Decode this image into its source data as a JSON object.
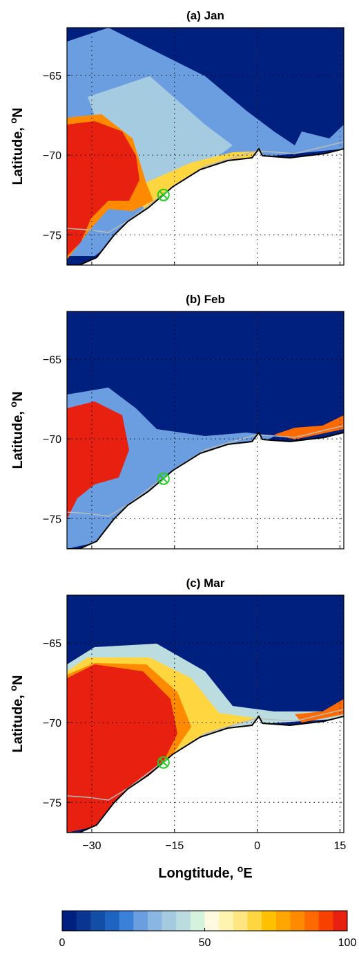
{
  "axes": {
    "xlim": [
      -34.5,
      15.7
    ],
    "ylim": [
      -76.9,
      -62
    ],
    "xticks": [
      {
        "value": -30,
        "label": "−30"
      },
      {
        "value": -15,
        "label": "−15"
      },
      0,
      15
    ],
    "yticks": [
      {
        "value": -65,
        "label": "−65"
      },
      {
        "value": -70,
        "label": "−70"
      },
      {
        "value": -75,
        "label": "−75"
      }
    ],
    "xlabel": {
      "text": "Longtitude, ",
      "sup": "o",
      "unit": "E"
    },
    "ylabel": {
      "text": "Latitude, ",
      "sup": "o",
      "unit": "N"
    },
    "grid": true,
    "grid_style": "dotted"
  },
  "panels": [
    {
      "title": "(a) Jan"
    },
    {
      "title": "(b) Feb"
    },
    {
      "title": "(c) Mar"
    }
  ],
  "site": {
    "lon": -17,
    "lat": -72.5,
    "color": "#22cc22"
  },
  "colorbar": {
    "clim": [
      0,
      100
    ],
    "ticks": [
      0,
      50,
      100
    ],
    "colors": [
      "#00207f",
      "#0a3590",
      "#124ea8",
      "#1e64c0",
      "#3b80d8",
      "#6a9ee0",
      "#8ab6e2",
      "#a5cbe0",
      "#bcdde0",
      "#d5f2dc",
      "#fff9e0",
      "#fff3b0",
      "#ffe680",
      "#ffd640",
      "#ffc000",
      "#ffa500",
      "#ff8a00",
      "#ff6a00",
      "#f84000",
      "#e82010"
    ]
  }
}
